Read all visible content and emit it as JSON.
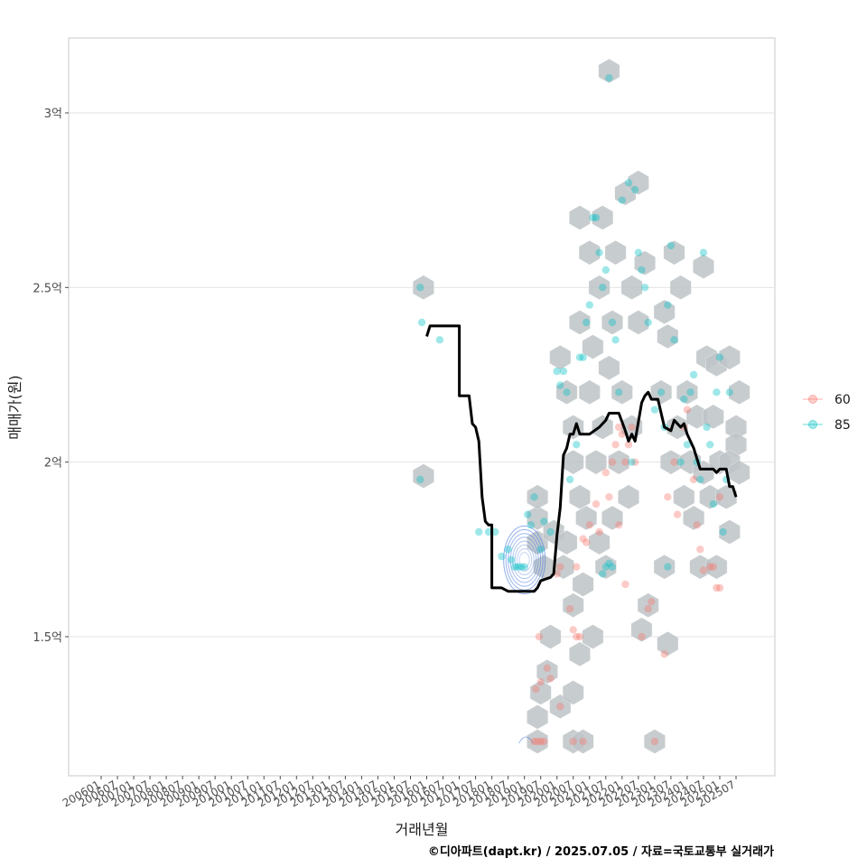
{
  "chart_data": {
    "type": "scatter",
    "xlabel": "거래년월",
    "ylabel": "매매가(원)",
    "caption": "©디아파트(dapt.kr) / 2025.07.05 / 자료=국토교통부 실거래가",
    "x_ticks": [
      "200601",
      "200607",
      "200701",
      "200707",
      "200801",
      "200807",
      "200901",
      "200907",
      "201001",
      "201007",
      "201101",
      "201107",
      "201201",
      "201207",
      "201301",
      "201307",
      "201401",
      "201407",
      "201501",
      "201507",
      "201601",
      "201607",
      "201701",
      "201707",
      "201801",
      "201807",
      "201901",
      "201907",
      "202001",
      "202007",
      "202101",
      "202107",
      "202201",
      "202207",
      "202301",
      "202307",
      "202401",
      "202407",
      "202501",
      "202507"
    ],
    "y_ticks": [
      {
        "value": 1.5,
        "label": "1.5억"
      },
      {
        "value": 2.0,
        "label": "2억"
      },
      {
        "value": 2.5,
        "label": "2.5억"
      },
      {
        "value": 3.0,
        "label": "3억"
      }
    ],
    "ylim": [
      1.1,
      3.22
    ],
    "xlim": [
      2004.0,
      2027.0
    ],
    "grid": true,
    "legend_position": "right",
    "series": [
      {
        "name": "60",
        "color": "#F8766D",
        "points": [
          [
            2019.3,
            1.2
          ],
          [
            2019.4,
            1.2
          ],
          [
            2019.5,
            1.2
          ],
          [
            2019.6,
            1.2
          ],
          [
            2019.35,
            1.35
          ],
          [
            2019.45,
            1.5
          ],
          [
            2019.5,
            1.37
          ],
          [
            2019.7,
            1.41
          ],
          [
            2019.8,
            1.38
          ],
          [
            2020.1,
            1.3
          ],
          [
            2020.0,
            1.68
          ],
          [
            2020.1,
            1.7
          ],
          [
            2020.4,
            1.58
          ],
          [
            2020.5,
            1.52
          ],
          [
            2020.6,
            1.5
          ],
          [
            2020.7,
            1.5
          ],
          [
            2020.5,
            1.2
          ],
          [
            2020.8,
            1.2
          ],
          [
            2020.6,
            1.7
          ],
          [
            2020.8,
            1.78
          ],
          [
            2020.9,
            1.77
          ],
          [
            2021.0,
            1.82
          ],
          [
            2021.2,
            1.88
          ],
          [
            2021.3,
            1.8
          ],
          [
            2021.5,
            1.97
          ],
          [
            2021.6,
            1.9
          ],
          [
            2021.7,
            2.0
          ],
          [
            2021.8,
            2.05
          ],
          [
            2021.9,
            2.1
          ],
          [
            2022.0,
            2.08
          ],
          [
            2022.1,
            2.0
          ],
          [
            2022.2,
            2.05
          ],
          [
            2022.3,
            2.1
          ],
          [
            2022.4,
            2.0
          ],
          [
            2021.9,
            1.82
          ],
          [
            2022.1,
            1.65
          ],
          [
            2022.6,
            1.5
          ],
          [
            2022.8,
            1.58
          ],
          [
            2022.9,
            1.6
          ],
          [
            2023.0,
            1.2
          ],
          [
            2023.3,
            1.45
          ],
          [
            2023.4,
            1.9
          ],
          [
            2023.6,
            2.0
          ],
          [
            2023.7,
            1.85
          ],
          [
            2023.9,
            2.1
          ],
          [
            2024.0,
            2.15
          ],
          [
            2024.2,
            1.95
          ],
          [
            2024.3,
            1.82
          ],
          [
            2024.4,
            1.75
          ],
          [
            2024.5,
            1.69
          ],
          [
            2024.7,
            1.7
          ],
          [
            2024.8,
            1.7
          ],
          [
            2024.9,
            1.64
          ],
          [
            2025.0,
            1.64
          ],
          [
            2025.0,
            1.9
          ]
        ]
      },
      {
        "name": "85",
        "color": "#00BFC4",
        "points": [
          [
            2015.8,
            2.5
          ],
          [
            2015.85,
            2.4
          ],
          [
            2015.8,
            1.95
          ],
          [
            2016.4,
            2.35
          ],
          [
            2017.6,
            1.8
          ],
          [
            2017.9,
            1.8
          ],
          [
            2018.1,
            1.8
          ],
          [
            2018.3,
            1.73
          ],
          [
            2018.5,
            1.75
          ],
          [
            2018.6,
            1.72
          ],
          [
            2018.7,
            1.7
          ],
          [
            2018.8,
            1.7
          ],
          [
            2018.9,
            1.7
          ],
          [
            2019.0,
            1.7
          ],
          [
            2019.1,
            1.85
          ],
          [
            2019.2,
            1.82
          ],
          [
            2019.3,
            1.9
          ],
          [
            2019.5,
            1.75
          ],
          [
            2019.6,
            1.83
          ],
          [
            2019.8,
            1.8
          ],
          [
            2020.0,
            2.26
          ],
          [
            2020.1,
            2.22
          ],
          [
            2020.2,
            2.26
          ],
          [
            2020.3,
            2.2
          ],
          [
            2020.4,
            1.95
          ],
          [
            2020.6,
            2.05
          ],
          [
            2020.7,
            2.3
          ],
          [
            2020.8,
            2.3
          ],
          [
            2020.9,
            2.4
          ],
          [
            2021.0,
            2.45
          ],
          [
            2021.1,
            2.7
          ],
          [
            2021.2,
            2.7
          ],
          [
            2021.3,
            2.6
          ],
          [
            2021.4,
            2.5
          ],
          [
            2021.5,
            2.55
          ],
          [
            2021.6,
            3.1
          ],
          [
            2021.7,
            2.4
          ],
          [
            2021.8,
            2.35
          ],
          [
            2021.9,
            2.2
          ],
          [
            2022.0,
            2.75
          ],
          [
            2022.2,
            2.8
          ],
          [
            2022.4,
            2.78
          ],
          [
            2022.5,
            2.6
          ],
          [
            2022.6,
            2.55
          ],
          [
            2022.7,
            2.5
          ],
          [
            2022.8,
            2.4
          ],
          [
            2022.3,
            2.0
          ],
          [
            2021.5,
            1.7
          ],
          [
            2021.6,
            1.71
          ],
          [
            2021.7,
            1.7
          ],
          [
            2021.4,
            1.68
          ],
          [
            2023.0,
            2.15
          ],
          [
            2023.2,
            2.2
          ],
          [
            2023.3,
            2.1
          ],
          [
            2023.4,
            2.45
          ],
          [
            2023.5,
            2.62
          ],
          [
            2023.6,
            2.35
          ],
          [
            2023.4,
            1.7
          ],
          [
            2023.8,
            2.0
          ],
          [
            2023.9,
            2.18
          ],
          [
            2024.0,
            2.05
          ],
          [
            2024.1,
            2.2
          ],
          [
            2024.2,
            2.25
          ],
          [
            2024.3,
            2.0
          ],
          [
            2024.4,
            1.95
          ],
          [
            2024.5,
            2.6
          ],
          [
            2024.6,
            2.1
          ],
          [
            2024.7,
            2.05
          ],
          [
            2024.8,
            1.88
          ],
          [
            2024.9,
            2.2
          ],
          [
            2025.0,
            2.3
          ],
          [
            2025.1,
            1.8
          ],
          [
            2025.2,
            1.95
          ],
          [
            2025.3,
            2.2
          ]
        ]
      }
    ],
    "hexbins": [
      [
        2015.9,
        2.5
      ],
      [
        2015.9,
        1.96
      ],
      [
        2019.4,
        1.2
      ],
      [
        2019.4,
        1.27
      ],
      [
        2019.4,
        1.77
      ],
      [
        2019.4,
        1.84
      ],
      [
        2019.4,
        1.9
      ],
      [
        2019.5,
        1.34
      ],
      [
        2019.7,
        1.4
      ],
      [
        2019.6,
        1.7
      ],
      [
        2019.8,
        1.5
      ],
      [
        2019.9,
        1.8
      ],
      [
        2020.1,
        1.3
      ],
      [
        2020.2,
        1.7
      ],
      [
        2020.3,
        1.77
      ],
      [
        2020.3,
        2.2
      ],
      [
        2020.1,
        2.3
      ],
      [
        2020.5,
        1.2
      ],
      [
        2020.5,
        1.34
      ],
      [
        2020.5,
        1.59
      ],
      [
        2020.5,
        2.0
      ],
      [
        2020.5,
        2.1
      ],
      [
        2020.7,
        1.45
      ],
      [
        2020.7,
        1.9
      ],
      [
        2020.7,
        2.4
      ],
      [
        2020.7,
        2.7
      ],
      [
        2020.8,
        1.2
      ],
      [
        2020.8,
        1.65
      ],
      [
        2020.9,
        1.84
      ],
      [
        2021.0,
        2.2
      ],
      [
        2021.0,
        2.6
      ],
      [
        2021.1,
        1.5
      ],
      [
        2021.1,
        2.33
      ],
      [
        2021.2,
        2.0
      ],
      [
        2021.3,
        1.77
      ],
      [
        2021.3,
        2.5
      ],
      [
        2021.4,
        2.7
      ],
      [
        2021.4,
        2.1
      ],
      [
        2021.5,
        1.7
      ],
      [
        2021.6,
        3.12
      ],
      [
        2021.6,
        2.27
      ],
      [
        2021.7,
        1.84
      ],
      [
        2021.7,
        2.4
      ],
      [
        2021.8,
        2.6
      ],
      [
        2021.9,
        2.0
      ],
      [
        2022.0,
        2.2
      ],
      [
        2022.1,
        2.77
      ],
      [
        2022.2,
        1.9
      ],
      [
        2022.3,
        2.5
      ],
      [
        2022.3,
        2.1
      ],
      [
        2022.5,
        2.8
      ],
      [
        2022.5,
        2.4
      ],
      [
        2022.6,
        1.52
      ],
      [
        2022.7,
        2.57
      ],
      [
        2022.8,
        1.59
      ],
      [
        2023.0,
        1.2
      ],
      [
        2023.2,
        2.2
      ],
      [
        2023.3,
        1.7
      ],
      [
        2023.3,
        2.43
      ],
      [
        2023.4,
        1.48
      ],
      [
        2023.4,
        2.36
      ],
      [
        2023.5,
        2.0
      ],
      [
        2023.6,
        2.6
      ],
      [
        2023.7,
        2.1
      ],
      [
        2023.8,
        2.5
      ],
      [
        2023.9,
        1.9
      ],
      [
        2024.0,
        2.2
      ],
      [
        2024.1,
        2.0
      ],
      [
        2024.2,
        1.84
      ],
      [
        2024.3,
        2.13
      ],
      [
        2024.4,
        1.7
      ],
      [
        2024.5,
        2.56
      ],
      [
        2024.5,
        1.97
      ],
      [
        2024.6,
        2.3
      ],
      [
        2024.7,
        1.9
      ],
      [
        2024.8,
        2.13
      ],
      [
        2024.9,
        1.7
      ],
      [
        2024.9,
        2.28
      ],
      [
        2025.0,
        2.0
      ],
      [
        2025.2,
        1.9
      ],
      [
        2025.3,
        1.8
      ],
      [
        2025.5,
        2.1
      ],
      [
        2025.6,
        2.2
      ],
      [
        2025.5,
        2.05
      ],
      [
        2025.3,
        2.3
      ],
      [
        2025.3,
        2.0
      ],
      [
        2025.6,
        1.97
      ]
    ],
    "trend_line": [
      [
        2016.0,
        2.36
      ],
      [
        2016.1,
        2.39
      ],
      [
        2016.8,
        2.39
      ],
      [
        2017.0,
        2.39
      ],
      [
        2017.0,
        2.19
      ],
      [
        2017.3,
        2.19
      ],
      [
        2017.4,
        2.11
      ],
      [
        2017.5,
        2.1
      ],
      [
        2017.6,
        2.06
      ],
      [
        2017.7,
        1.9
      ],
      [
        2017.8,
        1.83
      ],
      [
        2017.9,
        1.82
      ],
      [
        2018.0,
        1.82
      ],
      [
        2018.0,
        1.64
      ],
      [
        2018.3,
        1.64
      ],
      [
        2018.5,
        1.63
      ],
      [
        2019.1,
        1.63
      ],
      [
        2019.3,
        1.63
      ],
      [
        2019.4,
        1.64
      ],
      [
        2019.5,
        1.66
      ],
      [
        2019.8,
        1.67
      ],
      [
        2019.9,
        1.68
      ],
      [
        2020.0,
        1.79
      ],
      [
        2020.1,
        1.87
      ],
      [
        2020.2,
        2.02
      ],
      [
        2020.3,
        2.04
      ],
      [
        2020.4,
        2.08
      ],
      [
        2020.5,
        2.08
      ],
      [
        2020.6,
        2.11
      ],
      [
        2020.7,
        2.08
      ],
      [
        2021.0,
        2.08
      ],
      [
        2021.3,
        2.1
      ],
      [
        2021.5,
        2.12
      ],
      [
        2021.6,
        2.14
      ],
      [
        2021.9,
        2.14
      ],
      [
        2022.1,
        2.09
      ],
      [
        2022.2,
        2.06
      ],
      [
        2022.3,
        2.08
      ],
      [
        2022.4,
        2.06
      ],
      [
        2022.6,
        2.17
      ],
      [
        2022.7,
        2.19
      ],
      [
        2022.8,
        2.2
      ],
      [
        2022.9,
        2.18
      ],
      [
        2023.1,
        2.18
      ],
      [
        2023.3,
        2.1
      ],
      [
        2023.5,
        2.09
      ],
      [
        2023.6,
        2.12
      ],
      [
        2023.8,
        2.1
      ],
      [
        2023.9,
        2.11
      ],
      [
        2024.0,
        2.08
      ],
      [
        2024.2,
        2.04
      ],
      [
        2024.4,
        1.98
      ],
      [
        2024.8,
        1.98
      ],
      [
        2024.9,
        1.97
      ],
      [
        2025.0,
        1.98
      ],
      [
        2025.2,
        1.98
      ],
      [
        2025.3,
        1.93
      ],
      [
        2025.4,
        1.93
      ],
      [
        2025.5,
        1.9
      ]
    ],
    "density_center": [
      2019.0,
      1.72
    ],
    "density_small_center": [
      2019.05,
      1.2
    ]
  }
}
